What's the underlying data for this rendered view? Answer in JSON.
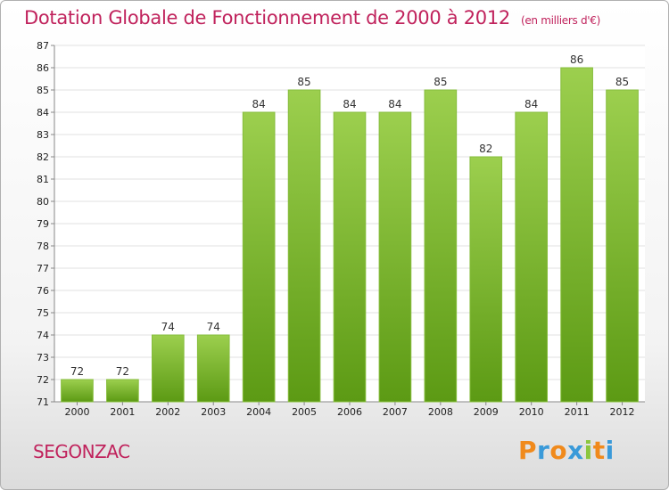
{
  "title": "Dotation Globale de Fonctionnement de 2000 à 2012",
  "subtitle": "(en milliers d'€)",
  "commune": "SEGONZAC",
  "logo": {
    "letters": [
      "P",
      "r",
      "o",
      "x",
      "i",
      "t",
      "i"
    ],
    "colors": [
      "#f08a1c",
      "#3a9ad9",
      "#f08a1c",
      "#3a9ad9",
      "#8cc63f",
      "#f08a1c",
      "#3a9ad9"
    ]
  },
  "colors": {
    "bar_top": "#9ccf4e",
    "bar_bottom": "#5c9a14",
    "grid": "#e0e0e0",
    "accent": "#c0225c"
  },
  "chart_data": {
    "type": "bar",
    "categories": [
      "2000",
      "2001",
      "2002",
      "2003",
      "2004",
      "2005",
      "2006",
      "2007",
      "2008",
      "2009",
      "2010",
      "2011",
      "2012"
    ],
    "values": [
      72,
      72,
      74,
      74,
      84,
      85,
      84,
      84,
      85,
      82,
      84,
      86,
      85
    ],
    "ylim": [
      71,
      87
    ],
    "yticks": [
      71,
      72,
      73,
      74,
      75,
      76,
      77,
      78,
      79,
      80,
      81,
      82,
      83,
      84,
      85,
      86,
      87
    ],
    "grid": true,
    "data_labels": true
  }
}
